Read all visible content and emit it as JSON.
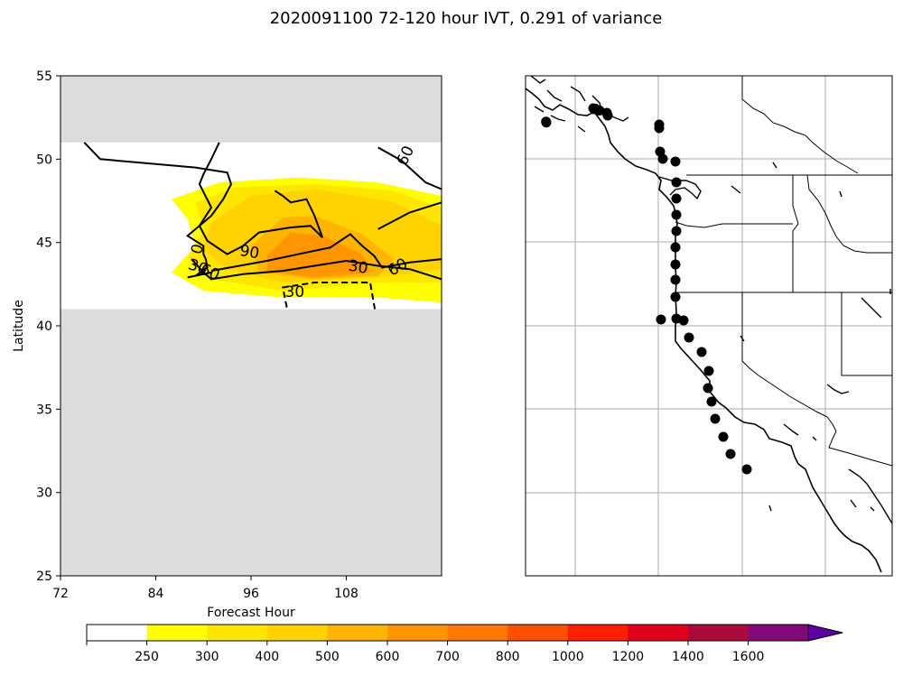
{
  "title": "2020091100 72-120 hour IVT, 0.291 of variance",
  "chart_data": [
    {
      "type": "contour",
      "xlabel": "Forecast Hour",
      "ylabel": "Latitude",
      "xlim": [
        72,
        120
      ],
      "ylim": [
        25,
        55
      ],
      "xticks": [
        72,
        84,
        96,
        108
      ],
      "yticks": [
        25,
        30,
        35,
        40,
        45,
        50,
        55
      ],
      "missing_data_color": "#dcdcdc",
      "valid_lat_range": [
        41,
        51
      ],
      "filled_levels": [
        {
          "value": 250,
          "polygon": [
            [
              86,
              47.6
            ],
            [
              92,
              48.6
            ],
            [
              102,
              48.9
            ],
            [
              112,
              48.6
            ],
            [
              120,
              47.8
            ],
            [
              120,
              41.4
            ],
            [
              112,
              41.7
            ],
            [
              100,
              41.7
            ],
            [
              90,
              42.1
            ],
            [
              86,
              43.2
            ],
            [
              89,
              44.8
            ],
            [
              88,
              46.4
            ]
          ]
        },
        {
          "value": 300,
          "polygon": [
            [
              89,
              47.4
            ],
            [
              94,
              48.3
            ],
            [
              104,
              48.5
            ],
            [
              114,
              48.1
            ],
            [
              120,
              47.1
            ],
            [
              120,
              42.6
            ],
            [
              112,
              42.6
            ],
            [
              100,
              42.1
            ],
            [
              91,
              42.8
            ],
            [
              88,
              44.1
            ],
            [
              90,
              45.7
            ]
          ]
        },
        {
          "value": 400,
          "polygon": [
            [
              91,
              46.2
            ],
            [
              96,
              47.8
            ],
            [
              104,
              48.2
            ],
            [
              114,
              47.4
            ],
            [
              120,
              46.0
            ],
            [
              120,
              43.4
            ],
            [
              112,
              42.9
            ],
            [
              100,
              42.6
            ],
            [
              93,
              43.4
            ],
            [
              90,
              44.6
            ]
          ]
        },
        {
          "value": 500,
          "polygon": [
            [
              96,
              44.8
            ],
            [
              100,
              46.5
            ],
            [
              104,
              46.6
            ],
            [
              110,
              45.5
            ],
            [
              114,
              44.0
            ],
            [
              112,
              43.0
            ],
            [
              104,
              42.8
            ],
            [
              97,
              43.2
            ]
          ]
        },
        {
          "value": 600,
          "polygon": [
            [
              98,
              44.2
            ],
            [
              101,
              45.6
            ],
            [
              105,
              45.4
            ],
            [
              110,
              44.3
            ],
            [
              111,
              43.2
            ],
            [
              104,
              42.9
            ],
            [
              98,
              43.3
            ]
          ]
        }
      ],
      "contours": [
        {
          "value": 0,
          "label": "0",
          "dashed": false,
          "points": [
            [
              75,
              51
            ],
            [
              77,
              50
            ],
            [
              89,
              49.5
            ],
            [
              93,
              49.2
            ],
            [
              93.5,
              48.5
            ],
            [
              92.5,
              47.6
            ],
            [
              91,
              46.6
            ],
            [
              89,
              45.8
            ],
            [
              88,
              45.4
            ],
            [
              90,
              44.8
            ],
            [
              90,
              44.3
            ],
            [
              90.3,
              44.0
            ],
            [
              90.5,
              43.5
            ],
            [
              89,
              43.0
            ],
            [
              88,
              42.9
            ],
            [
              91,
              43.2
            ]
          ]
        },
        {
          "value": 60,
          "label": "60",
          "dashed": false,
          "points": [
            [
              88.5,
              44.0
            ],
            [
              90,
              43.2
            ],
            [
              91,
              42.8
            ],
            [
              95,
              43.1
            ],
            [
              100,
              43.3
            ],
            [
              104,
              43.6
            ],
            [
              108,
              43.9
            ],
            [
              112,
              43.6
            ],
            [
              116,
              43.4
            ],
            [
              120,
              42.8
            ]
          ]
        },
        {
          "value": 90,
          "label": "90",
          "dashed": false,
          "points": [
            [
              92,
              51
            ],
            [
              91,
              50.0
            ],
            [
              90,
              49.1
            ],
            [
              89.5,
              48.5
            ],
            [
              91,
              47.1
            ],
            [
              89.5,
              46.0
            ],
            [
              90.5,
              45.1
            ],
            [
              93,
              44.3
            ],
            [
              95,
              44.8
            ],
            [
              97,
              45.6
            ],
            [
              101,
              45.9
            ],
            [
              103.5,
              46.0
            ],
            [
              105,
              45.3
            ],
            [
              104,
              46.6
            ],
            [
              103,
              47.6
            ],
            [
              101,
              47.4
            ],
            [
              100,
              47.8
            ],
            [
              99,
              48.1
            ]
          ]
        },
        {
          "value": 30,
          "label": "30",
          "dashed": false,
          "points": [
            [
              91,
              43.3
            ],
            [
              98,
              43.9
            ],
            [
              103,
              44.4
            ],
            [
              106,
              44.7
            ],
            [
              108.5,
              45.5
            ],
            [
              110,
              44.8
            ],
            [
              111.5,
              44.2
            ],
            [
              112.5,
              43.5
            ],
            [
              116,
              43.8
            ],
            [
              120,
              44.0
            ]
          ]
        },
        {
          "value": 60,
          "label": "60",
          "dashed": false,
          "points": [
            [
              112,
              50.7
            ],
            [
              115,
              49.9
            ],
            [
              118,
              48.6
            ],
            [
              120,
              48.2
            ]
          ]
        },
        {
          "value": 30,
          "label": "30",
          "dashed": true,
          "points": [
            [
              100.5,
              41.1
            ],
            [
              100,
              42.3
            ],
            [
              104,
              42.6
            ],
            [
              111,
              42.6
            ],
            [
              111.6,
              41.0
            ]
          ]
        },
        {
          "value": 0,
          "label": "",
          "dashed": false,
          "points": [
            [
              112,
              45.8
            ],
            [
              116,
              46.8
            ],
            [
              120,
              47.4
            ]
          ]
        }
      ],
      "contour_labels": [
        {
          "text": "0",
          "x": 89.3,
          "y": 44.6,
          "rotate": -75
        },
        {
          "text": "90",
          "x": 95.8,
          "y": 44.4,
          "rotate": 10
        },
        {
          "text": "60",
          "x": 90.8,
          "y": 43.2,
          "rotate": 25
        },
        {
          "text": "30",
          "x": 89.3,
          "y": 43.5,
          "rotate": 20
        },
        {
          "text": "30",
          "x": 109.5,
          "y": 43.5,
          "rotate": 10
        },
        {
          "text": "60",
          "x": 114.5,
          "y": 43.5,
          "rotate": -30
        },
        {
          "text": "60",
          "x": 115.5,
          "y": 50.2,
          "rotate": -65
        },
        {
          "text": "30",
          "x": 101.5,
          "y": 42.0,
          "rotate": 0
        }
      ]
    },
    {
      "type": "map",
      "region": "US West Coast",
      "gridlines": true,
      "station_markers": 33,
      "stations": [
        [
          23.0,
          51.7
        ],
        [
          22.7,
          50.8
        ],
        [
          75,
          36
        ],
        [
          77.5,
          36.5
        ],
        [
          76,
          37.0
        ],
        [
          82,
          38.5
        ],
        [
          90,
          41
        ],
        [
          91,
          44
        ],
        [
          148,
          54
        ],
        [
          148,
          58
        ],
        [
          149,
          84
        ],
        [
          152,
          92
        ],
        [
          166,
          95
        ],
        [
          167,
          118
        ],
        [
          167,
          136
        ],
        [
          167,
          154
        ],
        [
          167,
          172
        ],
        [
          166,
          190
        ],
        [
          166,
          209
        ],
        [
          166,
          226
        ],
        [
          166,
          245
        ],
        [
          167,
          269
        ],
        [
          150,
          270
        ],
        [
          175,
          271
        ],
        [
          181,
          290
        ],
        [
          195,
          306
        ],
        [
          203,
          327
        ],
        [
          202,
          346
        ],
        [
          206,
          361
        ],
        [
          210,
          380
        ],
        [
          219,
          400
        ],
        [
          227,
          419
        ],
        [
          245,
          436
        ]
      ]
    }
  ],
  "colorbar": {
    "ticks": [
      "250",
      "300",
      "400",
      "500",
      "600",
      "700",
      "800",
      "1000",
      "1200",
      "1400",
      "1600"
    ],
    "colors": [
      "#ffffff",
      "#ffff00",
      "#ffe600",
      "#ffd200",
      "#ffb400",
      "#ff9600",
      "#ff7800",
      "#ff5000",
      "#ff1e00",
      "#e1001e",
      "#aa0a3c",
      "#820a78",
      "#5a00a0"
    ]
  }
}
